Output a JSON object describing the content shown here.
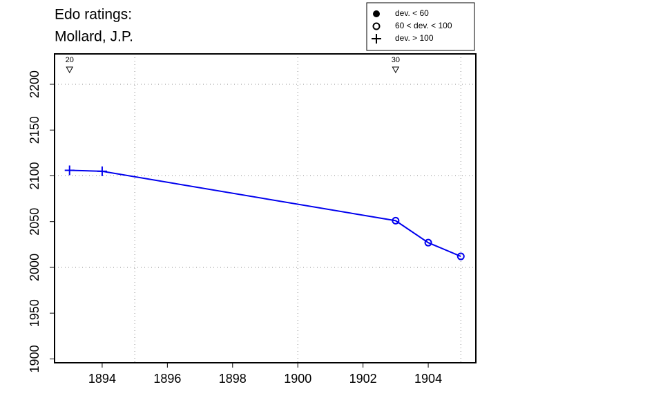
{
  "chart_data": {
    "type": "line",
    "title": "Edo ratings:",
    "subtitle": "Mollard, J.P.",
    "x": [
      1893,
      1894,
      1903,
      1904,
      1905
    ],
    "series": [
      {
        "color": "#0000ee",
        "values": [
          2106,
          2105,
          2051,
          2027,
          2012
        ],
        "markers": [
          "plus",
          "plus",
          "circle",
          "circle",
          "circle"
        ]
      }
    ],
    "xlim": [
      1892.54,
      1905.46
    ],
    "ylim": [
      1895.8,
      2233.2
    ],
    "xticks": [
      1894,
      1896,
      1898,
      1900,
      1902,
      1904
    ],
    "yticks": [
      1900,
      1950,
      2000,
      2050,
      2100,
      2150,
      2200
    ],
    "xgrid": [
      1895,
      1900,
      1905
    ],
    "ygrid": [
      2000,
      2100,
      2200
    ],
    "annotations": [
      {
        "x": 1893,
        "label": "20"
      },
      {
        "x": 1903,
        "label": "30"
      }
    ],
    "legend": [
      {
        "label": "dev. < 60",
        "symbol": "dot"
      },
      {
        "label": "60 < dev. < 100",
        "symbol": "circle"
      },
      {
        "label": "dev. > 100",
        "symbol": "plus"
      }
    ]
  }
}
